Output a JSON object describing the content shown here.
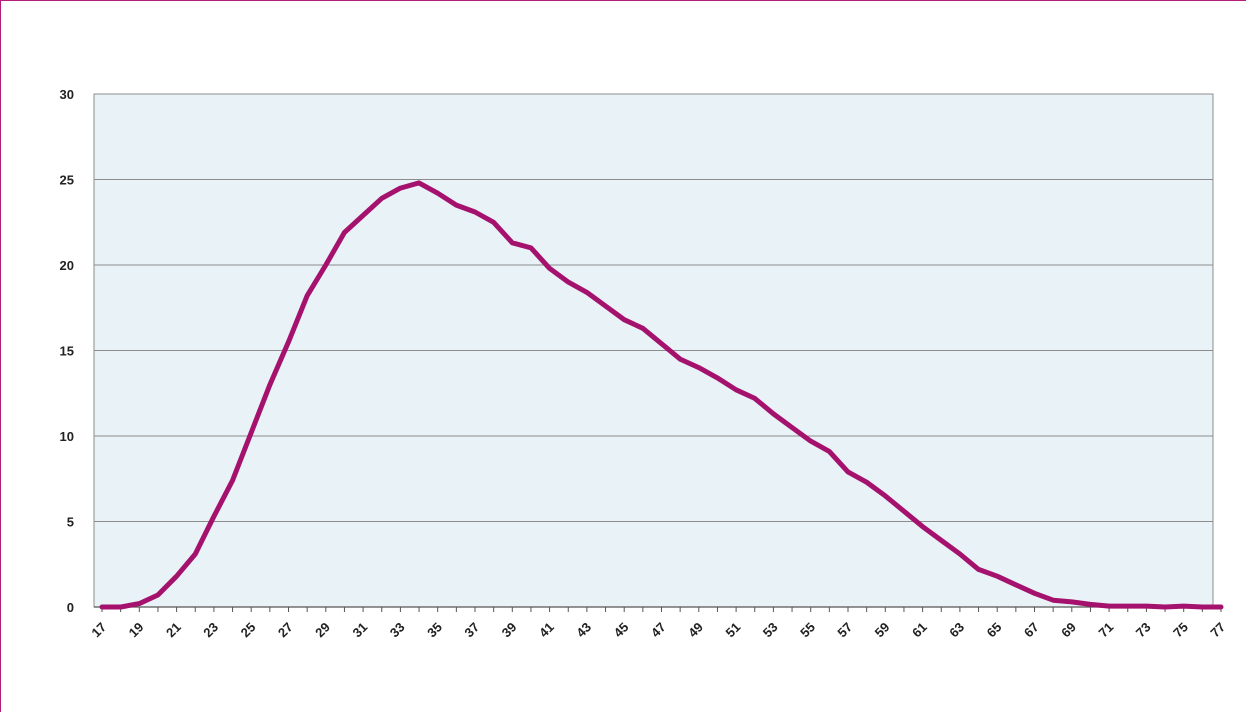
{
  "chart_data": {
    "type": "line",
    "title": "",
    "xlabel": "",
    "ylabel": "",
    "x": [
      17,
      18,
      19,
      20,
      21,
      22,
      23,
      24,
      25,
      26,
      27,
      28,
      29,
      30,
      31,
      32,
      33,
      34,
      35,
      36,
      37,
      38,
      39,
      40,
      41,
      42,
      43,
      44,
      45,
      46,
      47,
      48,
      49,
      50,
      51,
      52,
      53,
      54,
      55,
      56,
      57,
      58,
      59,
      60,
      61,
      62,
      63,
      64,
      65,
      66,
      67,
      68,
      69,
      70,
      71,
      72,
      73,
      74,
      75,
      76,
      77
    ],
    "x_tick_labels": [
      "17",
      "19",
      "21",
      "23",
      "25",
      "27",
      "29",
      "31",
      "33",
      "35",
      "37",
      "39",
      "41",
      "43",
      "45",
      "47",
      "49",
      "51",
      "53",
      "55",
      "57",
      "59",
      "61",
      "63",
      "65",
      "67",
      "69",
      "71",
      "73",
      "75",
      "77"
    ],
    "y_tick_labels": [
      "0",
      "5",
      "10",
      "15",
      "20",
      "25",
      "30"
    ],
    "ylim": [
      0,
      30
    ],
    "grid": true,
    "series": [
      {
        "values": [
          0,
          0,
          0.2,
          0.7,
          1.8,
          3.1,
          5.3,
          7.4,
          10.2,
          13.0,
          15.5,
          18.2,
          20.0,
          21.9,
          22.9,
          23.9,
          24.5,
          24.8,
          24.2,
          23.5,
          23.1,
          22.5,
          21.3,
          21.0,
          19.8,
          19.0,
          18.4,
          17.6,
          16.8,
          16.3,
          15.4,
          14.5,
          14.0,
          13.4,
          12.7,
          12.2,
          11.3,
          10.5,
          9.7,
          9.1,
          7.9,
          7.3,
          6.5,
          5.6,
          4.7,
          3.9,
          3.1,
          2.2,
          1.8,
          1.3,
          0.8,
          0.4,
          0.3,
          0.15,
          0.05,
          0.05,
          0.05,
          0,
          0.05,
          0,
          0
        ]
      }
    ],
    "colors": {
      "line": "#a5126e",
      "plot_background": "#e8f2f7",
      "grid": "#8c8c8c",
      "frame": "#b51d7a"
    }
  }
}
